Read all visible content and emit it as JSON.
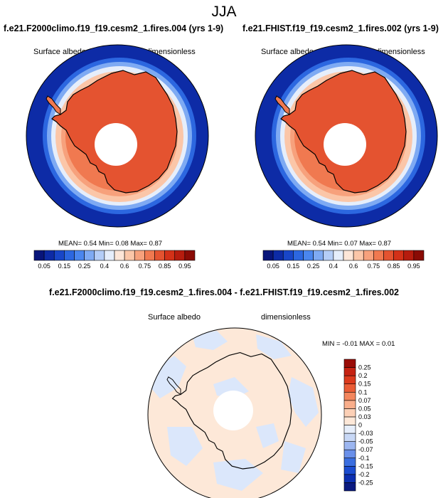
{
  "title": "JJA",
  "panels": [
    {
      "title": "f.e21.F2000climo.f19_f19.cesm2_1.fires.004 (yrs 1-9)",
      "variable": "Surface albedo",
      "units": "dimensionless",
      "stats": {
        "mean_label": "MEAN=",
        "mean": "0.54",
        "min_label": "Min=",
        "min": "0.08",
        "max_label": "Max=",
        "max": "0.87"
      }
    },
    {
      "title": "f.e21.FHIST.f19_f19.cesm2_1.fires.002 (yrs 1-9)",
      "variable": "Surface albedo",
      "units": "dimensionless",
      "stats": {
        "mean_label": "MEAN=",
        "mean": "0.54",
        "min_label": "Min=",
        "min": "0.07",
        "max_label": "Max=",
        "max": "0.87"
      }
    }
  ],
  "diff_panel": {
    "title": "f.e21.F2000climo.f19_f19.cesm2_1.fires.004 - f.e21.FHIST.f19_f19.cesm2_1.fires.002",
    "variable": "Surface albedo",
    "units": "dimensionless",
    "stats": {
      "min_label": "MIN =",
      "min": "-0.01",
      "max_label": "MAX =",
      "max": "0.01"
    }
  },
  "colorbar_abs": {
    "colors": [
      "#08157a",
      "#0d2ba6",
      "#1846c8",
      "#2c67e0",
      "#4a86ee",
      "#7eaaf3",
      "#b4cdf7",
      "#e6eefb",
      "#fde6d8",
      "#fbc6a8",
      "#f7a17c",
      "#f07950",
      "#e45330",
      "#d33118",
      "#b61c0e",
      "#8a0b05"
    ],
    "tick_labels": [
      "0.05",
      "0.15",
      "0.25",
      "0.4",
      "0.6",
      "0.75",
      "0.85",
      "0.95"
    ]
  },
  "colorbar_diff": {
    "colors": [
      "#0a1a80",
      "#0c2fb0",
      "#1b4cd0",
      "#3a6ee0",
      "#6a90ea",
      "#9cb6f0",
      "#c8d8f6",
      "#e6eefb",
      "#fde8d8",
      "#fcd0b6",
      "#f9ae8b",
      "#f3865d",
      "#ea5c36",
      "#dc3a1d",
      "#c62212",
      "#9a0c07"
    ],
    "tick_labels": [
      "0.25",
      "0.2",
      "0.15",
      "0.1",
      "0.07",
      "0.05",
      "0.03",
      "0",
      "-0.03",
      "-0.05",
      "-0.07",
      "-0.1",
      "-0.15",
      "-0.2",
      "-0.25"
    ]
  }
}
